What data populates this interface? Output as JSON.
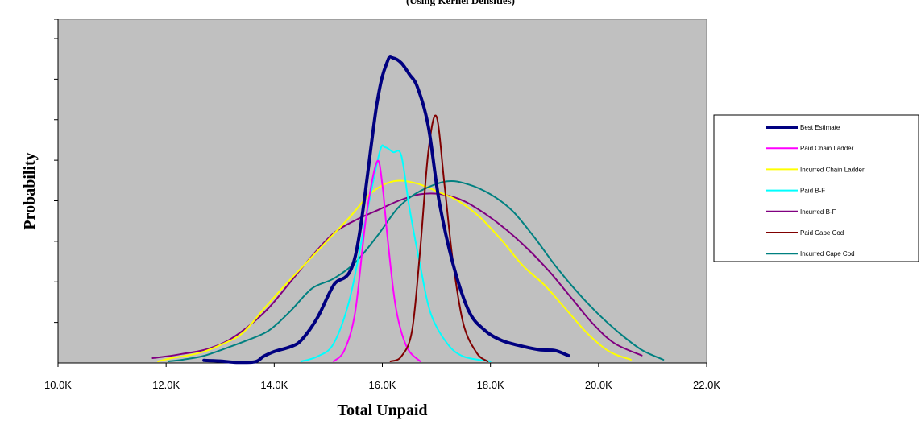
{
  "chart_data": {
    "type": "line",
    "subtitle": "(Using Kernel Densities)",
    "xlabel": "Total Unpaid",
    "ylabel": "Probability",
    "xlim": [
      10000,
      22000
    ],
    "ylim": [
      0,
      1
    ],
    "x_tick_values": [
      10000,
      12000,
      14000,
      16000,
      18000,
      20000,
      22000
    ],
    "x_tick_labels": [
      "10.0K",
      "12.0K",
      "14.0K",
      "16.0K",
      "18.0K",
      "20.0K",
      "22.0K"
    ],
    "y_tick_values": [
      0.125,
      0.25,
      0.375,
      0.5,
      0.625,
      0.75,
      0.875,
      1.0
    ],
    "y_tick_labels_shown": false,
    "plot_background": "#c0c0c0",
    "grid": false,
    "legend_position": "right",
    "series": [
      {
        "name": "Best Estimate",
        "color": "#000080",
        "width": 4,
        "points": [
          [
            12700,
            0.008
          ],
          [
            13000,
            0.006
          ],
          [
            13300,
            0.002
          ],
          [
            13650,
            0.004
          ],
          [
            13800,
            0.02
          ],
          [
            14000,
            0.035
          ],
          [
            14300,
            0.05
          ],
          [
            14500,
            0.07
          ],
          [
            14800,
            0.14
          ],
          [
            15100,
            0.24
          ],
          [
            15500,
            0.33
          ],
          [
            15900,
            0.8
          ],
          [
            16100,
            0.932
          ],
          [
            16200,
            0.94
          ],
          [
            16350,
            0.925
          ],
          [
            16500,
            0.89
          ],
          [
            16650,
            0.85
          ],
          [
            16850,
            0.73
          ],
          [
            17050,
            0.5
          ],
          [
            17300,
            0.31
          ],
          [
            17600,
            0.16
          ],
          [
            17900,
            0.1
          ],
          [
            18200,
            0.07
          ],
          [
            18500,
            0.055
          ],
          [
            18900,
            0.041
          ],
          [
            19200,
            0.038
          ],
          [
            19450,
            0.022
          ]
        ]
      },
      {
        "name": "Paid Chain Ladder",
        "color": "#ff00ff",
        "width": 2,
        "points": [
          [
            15100,
            0.005
          ],
          [
            15300,
            0.04
          ],
          [
            15500,
            0.16
          ],
          [
            15700,
            0.45
          ],
          [
            15900,
            0.62
          ],
          [
            16000,
            0.55
          ],
          [
            16100,
            0.38
          ],
          [
            16250,
            0.17
          ],
          [
            16450,
            0.05
          ],
          [
            16700,
            0.005
          ]
        ]
      },
      {
        "name": "Incurred Chain Ladder",
        "color": "#ffff00",
        "width": 2,
        "points": [
          [
            11850,
            0.005
          ],
          [
            12100,
            0.015
          ],
          [
            12400,
            0.023
          ],
          [
            12700,
            0.035
          ],
          [
            13000,
            0.055
          ],
          [
            13400,
            0.09
          ],
          [
            13800,
            0.165
          ],
          [
            14200,
            0.24
          ],
          [
            14600,
            0.31
          ],
          [
            15000,
            0.38
          ],
          [
            15400,
            0.45
          ],
          [
            15800,
            0.525
          ],
          [
            16200,
            0.56
          ],
          [
            16600,
            0.555
          ],
          [
            17000,
            0.53
          ],
          [
            17400,
            0.5
          ],
          [
            17800,
            0.45
          ],
          [
            18200,
            0.38
          ],
          [
            18600,
            0.3
          ],
          [
            19000,
            0.24
          ],
          [
            19400,
            0.165
          ],
          [
            19800,
            0.09
          ],
          [
            20200,
            0.035
          ],
          [
            20600,
            0.01
          ]
        ]
      },
      {
        "name": "Paid B-F",
        "color": "#00ffff",
        "width": 2,
        "points": [
          [
            14500,
            0.005
          ],
          [
            14800,
            0.02
          ],
          [
            15100,
            0.06
          ],
          [
            15400,
            0.2
          ],
          [
            15700,
            0.45
          ],
          [
            15950,
            0.65
          ],
          [
            16050,
            0.665
          ],
          [
            16200,
            0.65
          ],
          [
            16350,
            0.64
          ],
          [
            16500,
            0.48
          ],
          [
            16700,
            0.3
          ],
          [
            16900,
            0.15
          ],
          [
            17200,
            0.06
          ],
          [
            17500,
            0.02
          ],
          [
            18000,
            0.005
          ]
        ]
      },
      {
        "name": "Incurred B-F",
        "color": "#800080",
        "width": 2,
        "points": [
          [
            11750,
            0.015
          ],
          [
            12000,
            0.02
          ],
          [
            12300,
            0.028
          ],
          [
            12700,
            0.04
          ],
          [
            13100,
            0.065
          ],
          [
            13500,
            0.11
          ],
          [
            13900,
            0.17
          ],
          [
            14300,
            0.25
          ],
          [
            14700,
            0.33
          ],
          [
            15100,
            0.4
          ],
          [
            15500,
            0.44
          ],
          [
            15900,
            0.47
          ],
          [
            16300,
            0.5
          ],
          [
            16700,
            0.52
          ],
          [
            17100,
            0.52
          ],
          [
            17500,
            0.5
          ],
          [
            17900,
            0.46
          ],
          [
            18300,
            0.41
          ],
          [
            18700,
            0.35
          ],
          [
            19100,
            0.28
          ],
          [
            19500,
            0.2
          ],
          [
            19900,
            0.12
          ],
          [
            20300,
            0.06
          ],
          [
            20800,
            0.023
          ]
        ]
      },
      {
        "name": "Paid Cape Cod",
        "color": "#800000",
        "width": 2,
        "points": [
          [
            16150,
            0.005
          ],
          [
            16350,
            0.02
          ],
          [
            16550,
            0.1
          ],
          [
            16700,
            0.35
          ],
          [
            16850,
            0.65
          ],
          [
            17000,
            0.76
          ],
          [
            17150,
            0.55
          ],
          [
            17300,
            0.32
          ],
          [
            17500,
            0.12
          ],
          [
            17750,
            0.03
          ],
          [
            17950,
            0.005
          ]
        ]
      },
      {
        "name": "Incurred Cape Cod",
        "color": "#008080",
        "width": 2,
        "points": [
          [
            12050,
            0.005
          ],
          [
            12300,
            0.01
          ],
          [
            12700,
            0.022
          ],
          [
            13100,
            0.045
          ],
          [
            13500,
            0.07
          ],
          [
            13900,
            0.1
          ],
          [
            14300,
            0.16
          ],
          [
            14700,
            0.23
          ],
          [
            15100,
            0.26
          ],
          [
            15500,
            0.31
          ],
          [
            15900,
            0.39
          ],
          [
            16300,
            0.48
          ],
          [
            16700,
            0.53
          ],
          [
            17200,
            0.56
          ],
          [
            17600,
            0.55
          ],
          [
            18000,
            0.52
          ],
          [
            18400,
            0.47
          ],
          [
            18800,
            0.39
          ],
          [
            19200,
            0.3
          ],
          [
            19600,
            0.22
          ],
          [
            20000,
            0.15
          ],
          [
            20400,
            0.09
          ],
          [
            20800,
            0.04
          ],
          [
            21200,
            0.01
          ]
        ]
      }
    ]
  }
}
